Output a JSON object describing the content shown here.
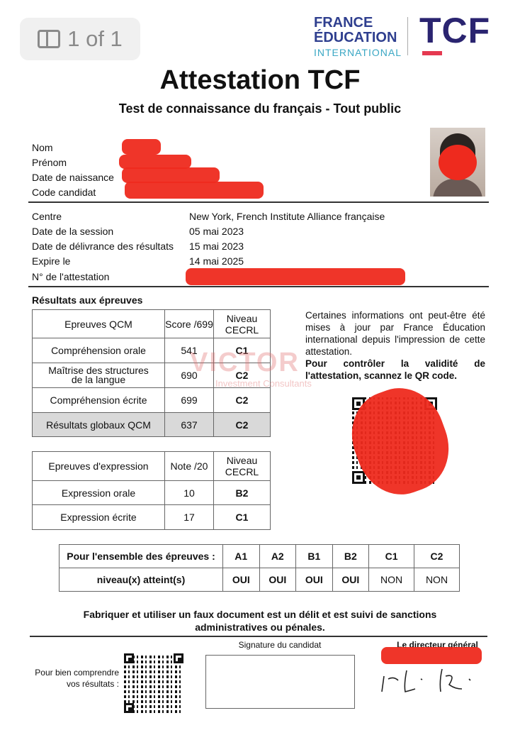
{
  "viewer": {
    "page_indicator": "1 of 1",
    "icon": "sidebar-icon"
  },
  "logo": {
    "line1": "FRANCE",
    "line2": "ÉDUCATION",
    "line3": "INTERNATIONAL",
    "brand": "TCF"
  },
  "title": "Attestation TCF",
  "subtitle": "Test de connaissance du français - Tout public",
  "candidate": {
    "labels": [
      "Nom",
      "Prénom",
      "Date de naissance",
      "Code candidat"
    ]
  },
  "session": [
    {
      "label": "Centre",
      "value": "New York, French Institute Alliance française"
    },
    {
      "label": "Date de la session",
      "value": "05 mai 2023"
    },
    {
      "label": "Date de délivrance des résultats",
      "value": "15 mai 2023"
    },
    {
      "label": "Expire le",
      "value": "14 mai 2025"
    },
    {
      "label": "N° de l'attestation",
      "value": ""
    }
  ],
  "results_heading": "Résultats aux épreuves",
  "qcm_table": {
    "headers": [
      "Epreuves QCM",
      "Score /699",
      "Niveau CECRL"
    ],
    "rows": [
      {
        "name": "Compréhension orale",
        "score": "541",
        "level": "C1"
      },
      {
        "name": "Maîtrise des structures de la langue",
        "score": "690",
        "level": "C2"
      },
      {
        "name": "Compréhension écrite",
        "score": "699",
        "level": "C2"
      },
      {
        "name": "Résultats globaux QCM",
        "score": "637",
        "level": "C2"
      }
    ]
  },
  "expression_table": {
    "headers": [
      "Epreuves d'expression",
      "Note /20",
      "Niveau CECRL"
    ],
    "rows": [
      {
        "name": "Expression orale",
        "score": "10",
        "level": "B2"
      },
      {
        "name": "Expression écrite",
        "score": "17",
        "level": "C1"
      }
    ]
  },
  "info_text": "Certaines informations ont peut-être été mises à jour par France Éducation international depuis l'impression de cette attestation.",
  "info_bold": "Pour contrôler la validité de l'attestation, scannez le QR code.",
  "watermark": {
    "brand": "VICTOR",
    "sub": "Investment Consultants"
  },
  "levels_table": {
    "row1_label": "Pour l'ensemble des épreuves :",
    "row2_label": "niveau(x) atteint(s)",
    "levels": [
      "A1",
      "A2",
      "B1",
      "B2",
      "C1",
      "C2"
    ],
    "values": [
      "OUI",
      "OUI",
      "OUI",
      "OUI",
      "NON",
      "NON"
    ]
  },
  "warning": {
    "line1": "Fabriquer et utiliser un faux document est un délit et est suivi de sanctions",
    "line2": "administratives ou pénales."
  },
  "footer": {
    "qr_label_1": "Pour bien comprendre",
    "qr_label_2": "vos résultats :",
    "signature_label": "Signature du candidat",
    "director_label": "Le directeur général"
  },
  "colors": {
    "redaction": "#ee2a1e",
    "brand_blue": "#2a2470",
    "brand_red": "#e53950",
    "grey_row": "#d9d9d9"
  }
}
